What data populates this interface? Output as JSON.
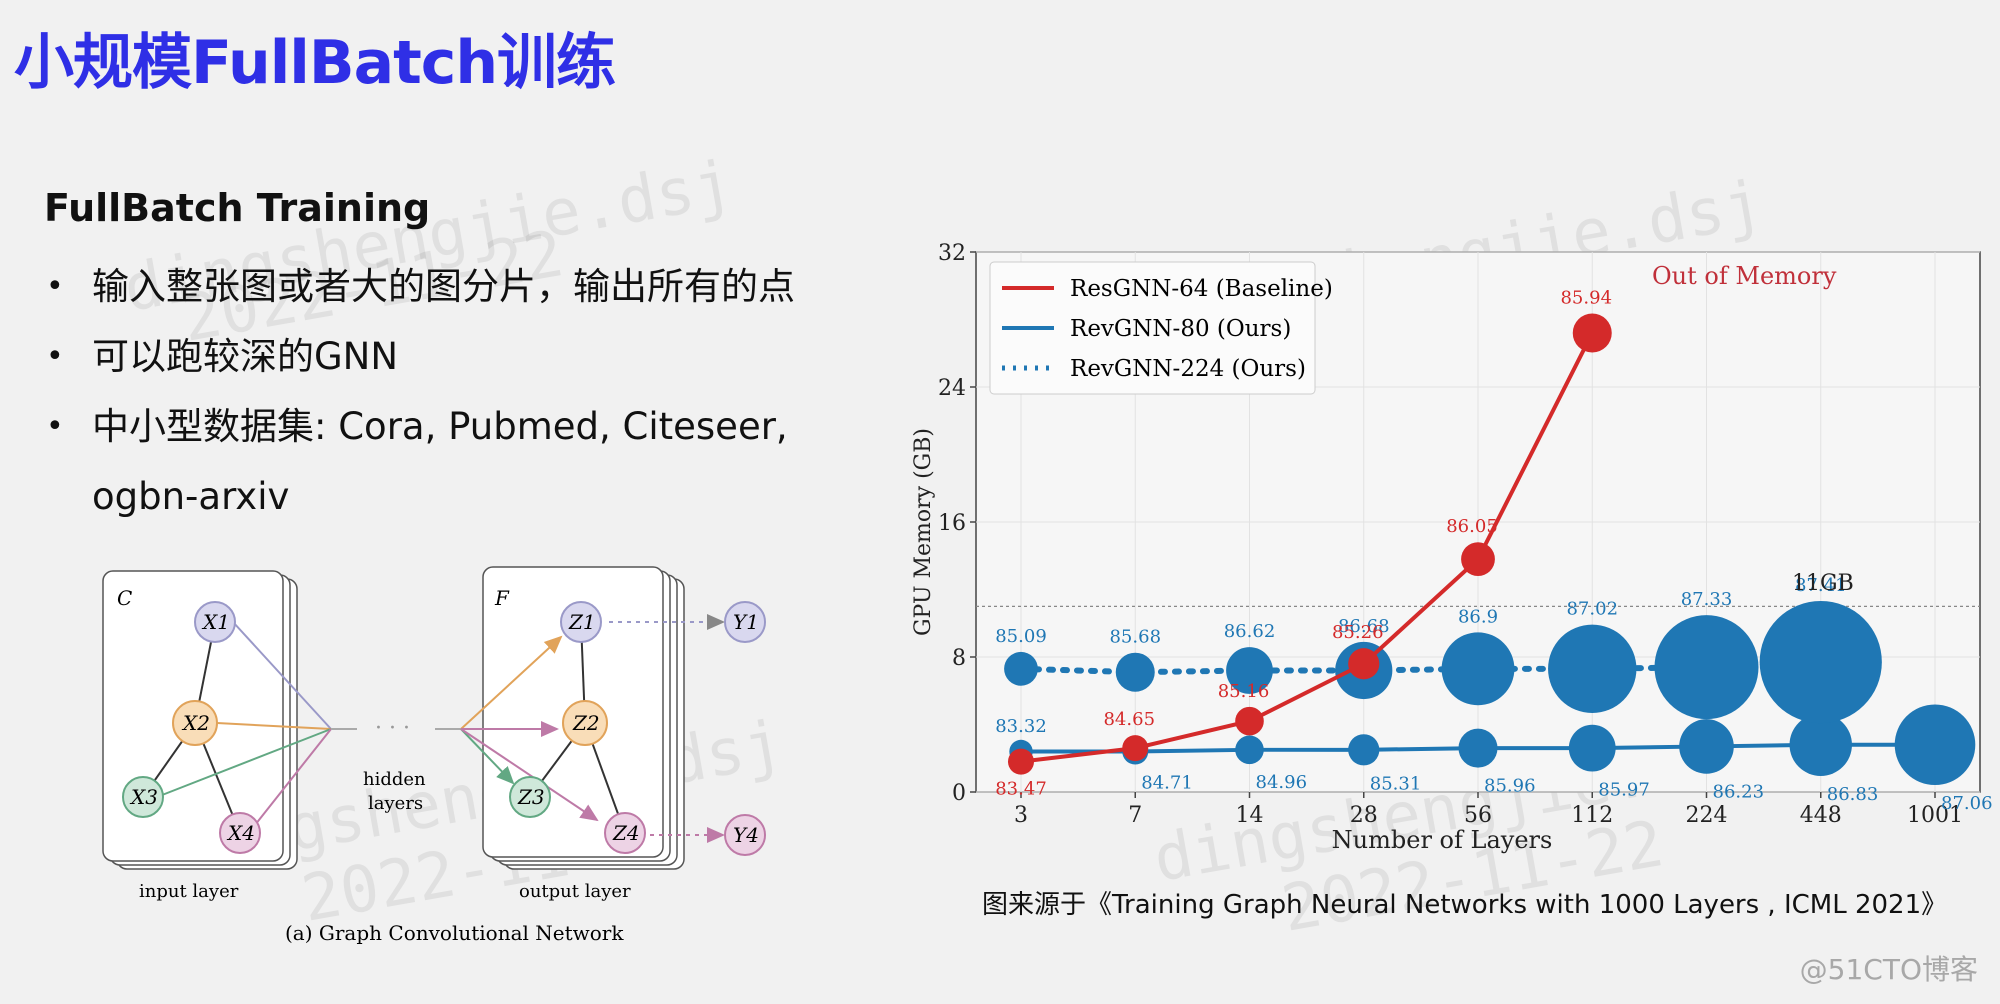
{
  "slide": {
    "title": "小规模FullBatch训练",
    "subtitle": "FullBatch Training",
    "bullets": [
      "输入整张图或者大的图分片，输出所有的点",
      "可以跑较深的GNN",
      "中小型数据集: Cora, Pubmed, Citeseer,"
    ],
    "bullet_continuation": "ogbn-arxiv",
    "bullet_marker": "•",
    "caption": "图来源于《Training Graph Neural Networks with 1000 Layers , ICML 2021》",
    "corner_watermark": "@51CTO博客",
    "watermark_name": "dingshengjie.dsj",
    "watermark_date": "2022-11-22"
  },
  "gcn_figure": {
    "left_panel_label": "C",
    "right_panel_label": "F",
    "input_nodes": [
      "X1",
      "X2",
      "X3",
      "X4"
    ],
    "output_nodes": [
      "Z1",
      "Z2",
      "Z3",
      "Z4"
    ],
    "target_nodes": [
      "Y1",
      "Y4"
    ],
    "hidden_label_line1": "hidden",
    "hidden_label_line2": "layers",
    "input_layer_label": "input layer",
    "output_layer_label": "output layer",
    "caption": "(a) Graph Convolutional Network",
    "colors": {
      "x1": "#d9d8ef",
      "x2": "#f9ddb8",
      "x3": "#cfe8da",
      "x4": "#edd3e5",
      "stroke_x1": "#9a99c8",
      "stroke_x2": "#e1a35a",
      "stroke_x3": "#62a883",
      "stroke_x4": "#be7aa7"
    }
  },
  "chart_data": {
    "type": "scatter",
    "annotation": "Out of Memory",
    "memory_line_label": "11GB",
    "memory_line_value": 11,
    "xlabel": "Number of Layers",
    "ylabel": "GPU Memory (GB)",
    "categories": [
      "3",
      "7",
      "14",
      "28",
      "56",
      "112",
      "224",
      "448",
      "1001"
    ],
    "yticks": [
      0,
      8,
      16,
      24,
      32
    ],
    "ylim": [
      0,
      32
    ],
    "grid": true,
    "legend_position": "top-left",
    "series": [
      {
        "name": "ResGNN-64 (Baseline)",
        "color": "#d42a2a",
        "line": "solid",
        "x_index": [
          0,
          1,
          2,
          3,
          4,
          5
        ],
        "values": [
          1.8,
          2.6,
          4.2,
          7.6,
          13.8,
          27.2
        ],
        "accuracy": [
          "83.47",
          "84.65",
          "85.16",
          "85.26",
          "86.05",
          "85.94"
        ],
        "marker_sizes": [
          1,
          1,
          1.1,
          1.2,
          1.3,
          1.5
        ]
      },
      {
        "name": "RevGNN-80 (Ours)",
        "color": "#1f77b4",
        "line": "solid",
        "x_index": [
          0,
          1,
          2,
          3,
          4,
          5,
          6,
          7,
          8
        ],
        "values": [
          2.4,
          2.4,
          2.5,
          2.5,
          2.6,
          2.6,
          2.7,
          2.8,
          2.8
        ],
        "accuracy": [
          "83.32",
          "84.71",
          "84.96",
          "85.31",
          "85.96",
          "85.97",
          "86.23",
          "86.83",
          "87.06"
        ],
        "marker_sizes": [
          0.9,
          1,
          1.1,
          1.2,
          1.5,
          1.8,
          2.1,
          2.4,
          3.1
        ]
      },
      {
        "name": "RevGNN-224 (Ours)",
        "color": "#1f77b4",
        "line": "dotted",
        "x_index": [
          0,
          1,
          2,
          3,
          4,
          5,
          6,
          7
        ],
        "values": [
          7.3,
          7.1,
          7.2,
          7.2,
          7.3,
          7.3,
          7.4,
          7.7
        ],
        "accuracy": [
          "85.09",
          "85.68",
          "86.62",
          "86.68",
          "86.9",
          "87.02",
          "87.33",
          "87.41"
        ],
        "marker_sizes": [
          1.3,
          1.5,
          1.8,
          2.2,
          2.8,
          3.4,
          4.0,
          4.7
        ]
      }
    ]
  }
}
